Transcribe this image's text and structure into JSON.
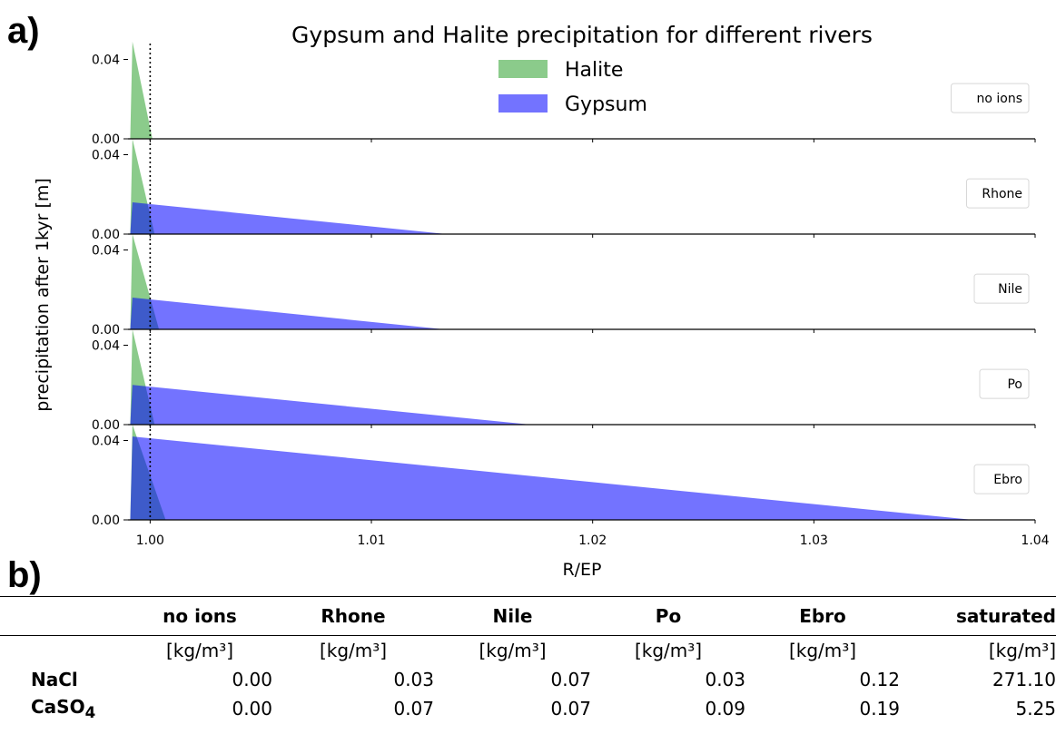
{
  "panel_a_label": "a)",
  "panel_b_label": "b)",
  "chart_data": {
    "type": "area",
    "title": "Gypsum and Halite precipitation for different rivers",
    "xlabel": "R/EP",
    "ylabel": "precipitation after 1kyr [m]",
    "xlim": [
      0.999,
      1.04
    ],
    "ylim": [
      0,
      0.048
    ],
    "xticks": [
      1.0,
      1.01,
      1.02,
      1.03,
      1.04
    ],
    "xtick_labels": [
      "1.00",
      "1.01",
      "1.02",
      "1.03",
      "1.04"
    ],
    "yticks": [
      0.0,
      0.04
    ],
    "ytick_labels": [
      "0.00",
      "0.04"
    ],
    "vline_x": 1.0,
    "legend": {
      "placement": "top-center",
      "entries": [
        {
          "name": "Halite",
          "color": "#2ca02c"
        },
        {
          "name": "Gypsum",
          "color": "#0000ff"
        }
      ]
    },
    "panels": [
      {
        "name": "no ions",
        "halite": {
          "x": [
            0.9991,
            0.9992,
            1.0001
          ],
          "y": [
            0,
            0.049,
            0
          ]
        },
        "gypsum": null
      },
      {
        "name": "Rhone",
        "halite": {
          "x": [
            0.9991,
            0.9992,
            1.0002
          ],
          "y": [
            0,
            0.048,
            0
          ]
        },
        "gypsum": {
          "x": [
            0.9991,
            0.9992,
            1.0134
          ],
          "y": [
            0,
            0.016,
            0
          ]
        }
      },
      {
        "name": "Nile",
        "halite": {
          "x": [
            0.9991,
            0.9992,
            1.0004
          ],
          "y": [
            0,
            0.048,
            0
          ]
        },
        "gypsum": {
          "x": [
            0.9991,
            0.9992,
            1.0133
          ],
          "y": [
            0,
            0.016,
            0
          ]
        }
      },
      {
        "name": "Po",
        "halite": {
          "x": [
            0.9991,
            0.9992,
            1.0002
          ],
          "y": [
            0,
            0.048,
            0
          ]
        },
        "gypsum": {
          "x": [
            0.9991,
            0.9992,
            1.0172
          ],
          "y": [
            0,
            0.02,
            0
          ]
        }
      },
      {
        "name": "Ebro",
        "halite": {
          "x": [
            0.9991,
            0.9992,
            1.0007,
            1.0007
          ],
          "y": [
            0,
            0.048,
            0,
            0
          ]
        },
        "gypsum": {
          "x": [
            0.9991,
            0.9992,
            1.0372
          ],
          "y": [
            0,
            0.042,
            0
          ]
        }
      }
    ]
  },
  "table": {
    "columns": [
      "",
      "no ions",
      "Rhone",
      "Nile",
      "Po",
      "Ebro",
      "saturated"
    ],
    "units": [
      "",
      "[kg/m³]",
      "[kg/m³]",
      "[kg/m³]",
      "[kg/m³]",
      "[kg/m³]",
      "[kg/m³]"
    ],
    "rows": [
      {
        "label": "NaCl",
        "values": [
          "0.00",
          "0.03",
          "0.07",
          "0.03",
          "0.12",
          "271.10"
        ]
      },
      {
        "label": "CaSO",
        "sub": "4",
        "values": [
          "0.00",
          "0.07",
          "0.07",
          "0.09",
          "0.19",
          "5.25"
        ]
      }
    ]
  }
}
